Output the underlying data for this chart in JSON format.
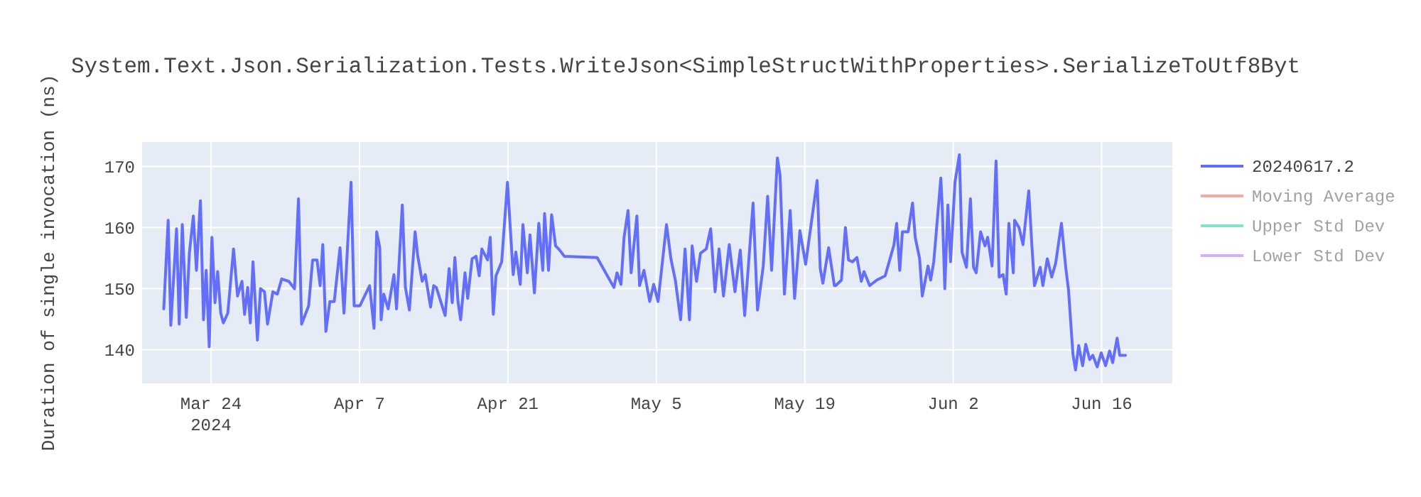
{
  "chart_data": {
    "type": "line",
    "title": "System.Text.Json.Serialization.Tests.WriteJson<SimpleStructWithProperties>.SerializeToUtf8Byt",
    "ylabel": "Duration of single invocation (ns)",
    "xlim": [
      "2024-03-17T12:00",
      "2024-06-22T16:00"
    ],
    "xticks": [
      {
        "value": "2024-03-24",
        "label": "Mar 24\n2024"
      },
      {
        "value": "2024-04-07",
        "label": "Apr 7"
      },
      {
        "value": "2024-04-21",
        "label": "Apr 21"
      },
      {
        "value": "2024-05-05",
        "label": "May 5"
      },
      {
        "value": "2024-05-19",
        "label": "May 19"
      },
      {
        "value": "2024-06-02",
        "label": "Jun 2"
      },
      {
        "value": "2024-06-16",
        "label": "Jun 16"
      }
    ],
    "ylim": [
      134.5,
      174
    ],
    "yticks": [
      140,
      150,
      160,
      170
    ],
    "grid": true,
    "legend": "top right",
    "line_style": "solid",
    "series": [
      {
        "name": "20240617.2",
        "color": "#636efa",
        "x": [
          "2024-03-19T13:00",
          "2024-03-19T23:00",
          "2024-03-20T05:00",
          "2024-03-20T18:00",
          "2024-03-21T00:00",
          "2024-03-21T07:00",
          "2024-03-21T16:00",
          "2024-03-21T23:00",
          "2024-03-22T08:00",
          "2024-03-22T15:00",
          "2024-03-23T00:00",
          "2024-03-23T07:00",
          "2024-03-23T13:00",
          "2024-03-23T20:00",
          "2024-03-24T02:00",
          "2024-03-24T09:00",
          "2024-03-24T15:00",
          "2024-03-24T22:00",
          "2024-03-25T04:00",
          "2024-03-25T14:00",
          "2024-03-26T03:00",
          "2024-03-26T12:00",
          "2024-03-26T22:00",
          "2024-03-27T04:00",
          "2024-03-27T11:00",
          "2024-03-27T17:00",
          "2024-03-27T23:00",
          "2024-03-28T09:00",
          "2024-03-28T16:00",
          "2024-03-29T01:00",
          "2024-03-29T08:00",
          "2024-03-29T20:00",
          "2024-03-30T06:00",
          "2024-03-30T16:00",
          "2024-03-31T08:00",
          "2024-03-31T21:00",
          "2024-04-01T06:00",
          "2024-04-01T13:00",
          "2024-04-02T05:00",
          "2024-04-02T14:00",
          "2024-04-03T00:00",
          "2024-04-03T07:00",
          "2024-04-03T13:00",
          "2024-04-03T20:00",
          "2024-04-04T05:00",
          "2024-04-04T15:00",
          "2024-04-05T04:00",
          "2024-04-05T13:00",
          "2024-04-05T23:00",
          "2024-04-06T05:00",
          "2024-04-06T12:00",
          "2024-04-07T01:00",
          "2024-04-07T23:00",
          "2024-04-08T09:00",
          "2024-04-08T15:00",
          "2024-04-08T22:00",
          "2024-04-09T01:00",
          "2024-04-09T07:00",
          "2024-04-09T17:00",
          "2024-04-10T06:00",
          "2024-04-10T12:00",
          "2024-04-11T01:00",
          "2024-04-11T08:00",
          "2024-04-11T17:00",
          "2024-04-12T06:00",
          "2024-04-12T12:00",
          "2024-04-12T22:00",
          "2024-04-13T05:00",
          "2024-04-13T17:00",
          "2024-04-14T00:00",
          "2024-04-14T06:00",
          "2024-04-15T02:00",
          "2024-04-15T11:00",
          "2024-04-15T18:00",
          "2024-04-16T00:00",
          "2024-04-16T07:00",
          "2024-04-16T13:00",
          "2024-04-16T23:00",
          "2024-04-17T05:00",
          "2024-04-17T15:00",
          "2024-04-18T00:00",
          "2024-04-18T07:00",
          "2024-04-18T13:00",
          "2024-04-19T02:00",
          "2024-04-19T08:00",
          "2024-04-19T15:00",
          "2024-04-19T21:00",
          "2024-04-20T10:00",
          "2024-04-20T23:00",
          "2024-04-21T12:00",
          "2024-04-21T18:00",
          "2024-04-22T04:00",
          "2024-04-22T10:00",
          "2024-04-22T20:00",
          "2024-04-23T02:00",
          "2024-04-23T12:00",
          "2024-04-23T22:00",
          "2024-04-24T07:00",
          "2024-04-24T11:00",
          "2024-04-24T20:00",
          "2024-04-25T03:00",
          "2024-04-25T12:00",
          "2024-04-25T19:00",
          "2024-04-26T08:00",
          "2024-04-29T10:00",
          "2024-05-01T00:00",
          "2024-05-01T07:00",
          "2024-05-01T16:00",
          "2024-05-01T23:00",
          "2024-05-02T08:00",
          "2024-05-02T15:00",
          "2024-05-03T04:00",
          "2024-05-03T10:00",
          "2024-05-03T20:00",
          "2024-05-04T09:00",
          "2024-05-04T18:00",
          "2024-05-05T04:00",
          "2024-05-05T23:00",
          "2024-05-06T09:00",
          "2024-05-06T19:00",
          "2024-05-07T07:00",
          "2024-05-07T17:00",
          "2024-05-08T03:00",
          "2024-05-08T09:00",
          "2024-05-08T19:00",
          "2024-05-09T04:00",
          "2024-05-09T17:00",
          "2024-05-10T03:00",
          "2024-05-10T13:00",
          "2024-05-10T22:00",
          "2024-05-11T08:00",
          "2024-05-11T21:00",
          "2024-05-12T10:00",
          "2024-05-12T22:00",
          "2024-05-13T08:00",
          "2024-05-14T03:00",
          "2024-05-14T13:00",
          "2024-05-15T02:00",
          "2024-05-15T12:00",
          "2024-05-15T21:00",
          "2024-05-16T10:00",
          "2024-05-16T16:00",
          "2024-05-17T02:00",
          "2024-05-17T15:00",
          "2024-05-18T01:00",
          "2024-05-18T13:00",
          "2024-05-19T02:00",
          "2024-05-20T04:00",
          "2024-05-20T11:00",
          "2024-05-20T17:00",
          "2024-05-21T06:00",
          "2024-05-21T19:00",
          "2024-05-21T22:00",
          "2024-05-22T11:00",
          "2024-05-22T20:00",
          "2024-05-23T03:00",
          "2024-05-23T12:00",
          "2024-05-23T22:00",
          "2024-05-24T08:00",
          "2024-05-24T14:00",
          "2024-05-25T03:00",
          "2024-05-25T19:00",
          "2024-05-26T14:00",
          "2024-05-27T10:00",
          "2024-05-27T16:00",
          "2024-05-27T23:00",
          "2024-05-28T05:00",
          "2024-05-28T18:00",
          "2024-05-29T04:00",
          "2024-05-29T10:00",
          "2024-05-29T20:00",
          "2024-05-30T02:00",
          "2024-05-30T15:00",
          "2024-05-30T21:00",
          "2024-05-31T04:00",
          "2024-05-31T20:00",
          "2024-05-31T23:00",
          "2024-06-01T05:00",
          "2024-06-01T12:00",
          "2024-06-01T18:00",
          "2024-06-02T04:00",
          "2024-06-02T14:00",
          "2024-06-02T20:00",
          "2024-06-03T06:00",
          "2024-06-03T15:00",
          "2024-06-03T22:00",
          "2024-06-04T04:00",
          "2024-06-04T14:00",
          "2024-06-05T00:00",
          "2024-06-05T06:00",
          "2024-06-05T16:00",
          "2024-06-06T01:00",
          "2024-06-06T08:00",
          "2024-06-06T17:00",
          "2024-06-07T00:00",
          "2024-06-07T06:00",
          "2024-06-07T16:00",
          "2024-06-07T19:00",
          "2024-06-08T05:00",
          "2024-06-08T14:00",
          "2024-06-09T03:00",
          "2024-06-09T10:00",
          "2024-06-09T16:00",
          "2024-06-10T05:00",
          "2024-06-10T11:00",
          "2024-06-10T21:00",
          "2024-06-11T07:00",
          "2024-06-11T16:00",
          "2024-06-12T05:00",
          "2024-06-12T15:00",
          "2024-06-12T21:00",
          "2024-06-13T07:00",
          "2024-06-13T13:00",
          "2024-06-13T20:00",
          "2024-06-14T05:00",
          "2024-06-14T12:00",
          "2024-06-14T21:00",
          "2024-06-15T04:00",
          "2024-06-15T14:00",
          "2024-06-15T23:00",
          "2024-06-16T09:00",
          "2024-06-16T18:00",
          "2024-06-17T01:00",
          "2024-06-17T11:00",
          "2024-06-17T17:00",
          "2024-06-18T06:00"
        ],
        "values": [
          146.7,
          161.2,
          144,
          159.8,
          144.2,
          160.5,
          145.3,
          155.8,
          161.9,
          153,
          164.4,
          144.9,
          153,
          140.5,
          158.4,
          147.7,
          152.8,
          146,
          144.4,
          146,
          156.5,
          148.8,
          151.2,
          145.8,
          150.2,
          144.4,
          154.4,
          141.6,
          150,
          149.5,
          144.2,
          149.5,
          149.1,
          151.6,
          151.2,
          150,
          164.7,
          144.2,
          147.2,
          154.7,
          154.7,
          150.5,
          157.2,
          143,
          147.9,
          147.9,
          156.7,
          146,
          159.5,
          167.4,
          147.2,
          147.2,
          150.5,
          143.5,
          159.3,
          156.7,
          144.9,
          149.1,
          146.7,
          152.3,
          146.7,
          163.7,
          150.2,
          146.5,
          159.3,
          155.3,
          151.2,
          152.3,
          147,
          150.5,
          150.2,
          145.6,
          153.3,
          147.7,
          155.1,
          147.9,
          144.9,
          152.6,
          148.4,
          154.9,
          155.3,
          152.1,
          156.5,
          154.7,
          158.4,
          145.8,
          152.1,
          154.4,
          167.4,
          152.3,
          156,
          150.7,
          160.5,
          152.6,
          158.8,
          149.3,
          160.7,
          153,
          162.3,
          153,
          162.1,
          157,
          156.5,
          155.3,
          155.1,
          150.2,
          152.6,
          150.7,
          158.4,
          162.8,
          152.6,
          161.9,
          150.5,
          153,
          147.9,
          150.7,
          147.9,
          160.5,
          154.9,
          151.4,
          144.9,
          156.5,
          144.9,
          157,
          151.2,
          155.8,
          156.5,
          159.8,
          149.5,
          156.5,
          148.8,
          157.2,
          149.5,
          156.3,
          145.6,
          164,
          146.5,
          153.7,
          165.1,
          153,
          171.4,
          168.6,
          149.1,
          162.8,
          148.4,
          159.5,
          154,
          167.7,
          153.3,
          150.9,
          156.7,
          150.5,
          150.5,
          151.4,
          160,
          154.7,
          154.4,
          155.1,
          151.2,
          152.8,
          150.5,
          151.4,
          152.1,
          157.2,
          160.7,
          153,
          159.3,
          159.3,
          164,
          158.4,
          154.9,
          148.8,
          153.7,
          151.4,
          154.4,
          168.1,
          163.7,
          150,
          163.7,
          154.4,
          167.4,
          171.9,
          156,
          153.5,
          164.7,
          153.5,
          152.6,
          159.3,
          157,
          158.4,
          153.7,
          170.9,
          151.9,
          152.3,
          149.1,
          160.7,
          152.6,
          161.2,
          160,
          157.2,
          166,
          157.2,
          150.5,
          153.5,
          150.5,
          154.9,
          151.9,
          154.2,
          160.7,
          153.3,
          149.8,
          139.3,
          136.7,
          140.7,
          137.4,
          140.9,
          138.4,
          139.1,
          137.2,
          139.5,
          137.4,
          139.8,
          137.9,
          141.9,
          139.1,
          139.1
        ]
      },
      {
        "name": "Moving Average",
        "color": "#ef553b"
      },
      {
        "name": "Upper Std Dev",
        "color": "#00cc96"
      },
      {
        "name": "Lower Std Dev",
        "color": "#ab63fa"
      }
    ]
  }
}
